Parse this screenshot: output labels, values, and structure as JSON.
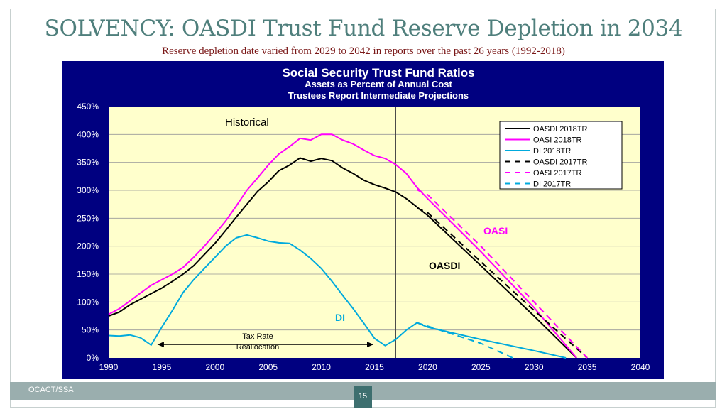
{
  "slide": {
    "title": "SOLVENCY:  OASDI Trust Fund Reserve Depletion in 2034",
    "subtitle": "Reserve depletion date varied from 2029 to 2042 in reports over the past 26 years (1992-2018)",
    "footer_left": "OCACT/SSA",
    "page_number": "15"
  },
  "colors": {
    "background_frame": "#000080",
    "plot_area": "#ffffcc",
    "oasdi": "#000000",
    "oasi": "#ff00ff",
    "di": "#00aadd"
  },
  "chart_data": {
    "type": "line",
    "title": "Social Security Trust Fund Ratios",
    "subtitle_line1": "Assets as Percent of Annual Cost",
    "subtitle_line2": "Trustees Report Intermediate Projections",
    "xlim": [
      1990,
      2040
    ],
    "ylim": [
      0,
      450
    ],
    "x_ticks": [
      "1990",
      "1995",
      "2000",
      "2005",
      "2010",
      "2015",
      "2020",
      "2025",
      "2030",
      "2035",
      "2040"
    ],
    "y_ticks": [
      "0%",
      "50%",
      "100%",
      "150%",
      "200%",
      "250%",
      "300%",
      "350%",
      "400%",
      "450%"
    ],
    "historical_divider_year": 2017,
    "annotations": {
      "historical": "Historical",
      "oasi": "OASI",
      "oasdi": "OASDI",
      "di": "DI",
      "tax_rate_line1": "Tax Rate",
      "tax_rate_line2": "Reallocation",
      "tax_rate_from": 1994.6,
      "tax_rate_to": 2014.9
    },
    "series": [
      {
        "name": "OASDI 2018TR",
        "style": "solid",
        "color": "#000000",
        "x": [
          1990,
          1991,
          1992,
          1993,
          1994,
          1995,
          1996,
          1997,
          1998,
          1999,
          2000,
          2001,
          2002,
          2003,
          2004,
          2005,
          2006,
          2007,
          2008,
          2009,
          2010,
          2011,
          2012,
          2013,
          2014,
          2015,
          2016,
          2017,
          2018,
          2019,
          2020,
          2025,
          2030,
          2034
        ],
        "y": [
          75,
          82,
          95,
          105,
          115,
          125,
          137,
          150,
          165,
          185,
          205,
          228,
          252,
          275,
          298,
          315,
          335,
          345,
          358,
          352,
          357,
          353,
          340,
          330,
          318,
          310,
          304,
          297,
          285,
          270,
          255,
          165,
          75,
          0
        ]
      },
      {
        "name": "OASI 2018TR",
        "style": "solid",
        "color": "#ff00ff",
        "x": [
          1990,
          1991,
          1992,
          1993,
          1994,
          1995,
          1996,
          1997,
          1998,
          1999,
          2000,
          2001,
          2002,
          2003,
          2004,
          2005,
          2006,
          2007,
          2008,
          2009,
          2010,
          2011,
          2012,
          2013,
          2014,
          2015,
          2016,
          2017,
          2018,
          2019,
          2020,
          2025,
          2030,
          2034
        ],
        "y": [
          78,
          88,
          102,
          116,
          130,
          140,
          150,
          162,
          180,
          200,
          222,
          245,
          272,
          300,
          322,
          345,
          365,
          378,
          393,
          390,
          400,
          400,
          390,
          383,
          372,
          362,
          357,
          346,
          330,
          305,
          285,
          190,
          90,
          0
        ]
      },
      {
        "name": "DI 2018TR",
        "style": "solid",
        "color": "#00aadd",
        "x": [
          1990,
          1991,
          1992,
          1993,
          1994,
          1995,
          1996,
          1997,
          1998,
          1999,
          2000,
          2001,
          2002,
          2003,
          2004,
          2005,
          2006,
          2007,
          2008,
          2009,
          2010,
          2011,
          2012,
          2013,
          2014,
          2015,
          2016,
          2017,
          2018,
          2019,
          2020,
          2025,
          2030,
          2033
        ],
        "y": [
          40,
          39,
          41,
          36,
          23,
          55,
          85,
          117,
          140,
          160,
          180,
          200,
          215,
          220,
          215,
          209,
          206,
          205,
          193,
          178,
          160,
          137,
          112,
          88,
          62,
          35,
          22,
          33,
          50,
          63,
          55,
          33,
          13,
          0
        ]
      },
      {
        "name": "OASDI 2017TR",
        "style": "dashed",
        "color": "#000000",
        "x": [
          2019,
          2020,
          2025,
          2030,
          2035
        ],
        "y": [
          268,
          260,
          172,
          85,
          0
        ]
      },
      {
        "name": "OASI 2017TR",
        "style": "dashed",
        "color": "#ff00ff",
        "x": [
          2019,
          2020,
          2025,
          2030,
          2035
        ],
        "y": [
          301,
          292,
          200,
          100,
          0
        ]
      },
      {
        "name": "DI 2017TR",
        "style": "dashed",
        "color": "#00aadd",
        "x": [
          2019,
          2020,
          2025,
          2028
        ],
        "y": [
          63,
          57,
          26,
          0
        ]
      }
    ]
  }
}
